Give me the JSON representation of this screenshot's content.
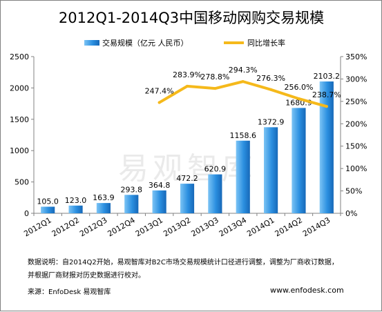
{
  "chart_data": {
    "type": "bar+line",
    "title": "2012Q1-2014Q3中国移动网购交易规模",
    "categories": [
      "2012Q1",
      "2012Q2",
      "2012Q3",
      "2012Q4",
      "2013Q1",
      "2013Q2",
      "2013Q3",
      "2013Q4",
      "2014Q1",
      "2014Q2",
      "2014Q3"
    ],
    "series": [
      {
        "name": "交易规模（亿元 人民币）",
        "type": "bar",
        "axis": "left",
        "values": [
          105.0,
          123.0,
          163.9,
          293.8,
          364.8,
          472.2,
          620.9,
          1158.6,
          1372.9,
          1680.9,
          2103.2
        ],
        "labels": [
          "105.0",
          "123.0",
          "163.9",
          "293.8",
          "364.8",
          "472.2",
          "620.9",
          "1158.6",
          "1372.9",
          "1680.9",
          "2103.2"
        ],
        "color": "#1f7fd6"
      },
      {
        "name": "同比增长率",
        "type": "line",
        "axis": "right",
        "values": [
          null,
          null,
          null,
          null,
          247.4,
          283.9,
          278.8,
          294.3,
          276.3,
          256.0,
          238.7
        ],
        "labels": [
          "",
          "",
          "",
          "",
          "247.4%",
          "283.9%",
          "278.8%",
          "294.3%",
          "276.3%",
          "256.0%",
          "238.7%"
        ],
        "color": "#f5b91b"
      }
    ],
    "y_left": {
      "min": 0,
      "max": 2500,
      "ticks": [
        "0",
        "500",
        "1000",
        "1500",
        "2000",
        "2500"
      ]
    },
    "y_right": {
      "min": 0,
      "max": 350,
      "ticks": [
        "0%",
        "50%",
        "100%",
        "150%",
        "200%",
        "250%",
        "300%",
        "350%"
      ]
    },
    "legend_position": "top-center",
    "grid": false
  },
  "watermark": "易观智库",
  "notes": {
    "line1": "数据说明：自2014Q2开始，易观智库对B2C市场交易规模统计口径进行调整，调整为厂商收订数据，",
    "line2": "并根据厂商财报对历史数据进行校对。",
    "source": "来源：EnfoDesk 易观智库",
    "site": "www.enfodesk.com"
  }
}
